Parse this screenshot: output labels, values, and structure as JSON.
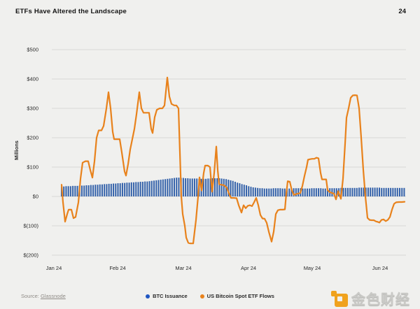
{
  "header": {
    "title": "ETFs Have Altered the Landscape",
    "page_number": "24"
  },
  "footer": {
    "source_prefix": "Source: ",
    "source_link": "Glassnode",
    "brand_name": "金色财经"
  },
  "chart_data": {
    "type": "combo-bar-line",
    "title": "ETFs Have Altered the Landscape",
    "ylabel": "Millions",
    "xlabel": "",
    "ylim": [
      -250,
      550
    ],
    "grid": true,
    "legend_position": "bottom-center",
    "y_ticks": [
      {
        "label": "$500",
        "value": 500
      },
      {
        "label": "$400",
        "value": 400
      },
      {
        "label": "$300",
        "value": 300
      },
      {
        "label": "$200",
        "value": 200
      },
      {
        "label": "$100",
        "value": 100
      },
      {
        "label": "$0",
        "value": 0
      },
      {
        "label": "$(100)",
        "value": -100
      },
      {
        "label": "$(200)",
        "value": -200
      }
    ],
    "x_ticks": [
      "Jan 24",
      "Feb 24",
      "Mar 24",
      "Apr 24",
      "May 24",
      "Jun 24"
    ],
    "series": [
      {
        "name": "BTC Issuance",
        "type": "bar",
        "color": "#3462aa",
        "legend_color": "#1f56c2",
        "unit": "USD millions per day",
        "values": [
          34,
          34,
          35,
          35,
          35,
          36,
          36,
          36,
          37,
          37,
          37,
          38,
          38,
          39,
          39,
          40,
          40,
          41,
          41,
          42,
          42,
          43,
          43,
          44,
          44,
          45,
          45,
          46,
          46,
          47,
          47,
          48,
          48,
          49,
          49,
          50,
          50,
          51,
          51,
          52,
          53,
          54,
          55,
          56,
          57,
          58,
          59,
          60,
          61,
          62,
          63,
          64,
          64,
          63,
          63,
          62,
          62,
          61,
          61,
          61,
          61,
          60,
          60,
          60,
          60,
          61,
          61,
          62,
          62,
          62,
          62,
          61,
          60,
          59,
          57,
          55,
          53,
          50,
          47,
          45,
          42,
          40,
          38,
          35,
          33,
          31,
          30,
          29,
          28,
          28,
          27,
          27,
          27,
          27,
          28,
          28,
          28,
          28,
          27,
          27,
          27,
          27,
          27,
          28,
          28,
          28,
          28,
          27,
          27,
          27,
          27,
          28,
          28,
          28,
          28,
          28,
          27,
          27,
          27,
          28,
          28,
          28,
          28,
          28,
          29,
          29,
          29,
          29,
          29,
          29,
          29,
          29,
          30,
          30,
          30,
          30,
          30,
          30,
          30,
          30,
          30,
          30,
          29,
          29,
          29,
          29,
          29,
          29,
          29,
          29,
          29,
          29,
          29
        ]
      },
      {
        "name": "US Bitcoin Spot ETF Flows",
        "type": "line",
        "color": "#e8821c",
        "unit": "USD millions per day",
        "points": [
          [
            88,
            40
          ],
          [
            90,
            -20
          ],
          [
            93,
            -86
          ],
          [
            96,
            -60
          ],
          [
            98,
            -45
          ],
          [
            102,
            -45
          ],
          [
            105,
            -74
          ],
          [
            108,
            -70
          ],
          [
            112,
            -20
          ],
          [
            115,
            60
          ],
          [
            118,
            115
          ],
          [
            122,
            120
          ],
          [
            126,
            120
          ],
          [
            129,
            90
          ],
          [
            132,
            64
          ],
          [
            135,
            120
          ],
          [
            138,
            200
          ],
          [
            141,
            225
          ],
          [
            145,
            225
          ],
          [
            148,
            240
          ],
          [
            152,
            300
          ],
          [
            155,
            355
          ],
          [
            158,
            300
          ],
          [
            161,
            220
          ],
          [
            163,
            195
          ],
          [
            167,
            195
          ],
          [
            171,
            195
          ],
          [
            174,
            150
          ],
          [
            178,
            85
          ],
          [
            180,
            71
          ],
          [
            183,
            110
          ],
          [
            186,
            160
          ],
          [
            189,
            195
          ],
          [
            192,
            230
          ],
          [
            195,
            280
          ],
          [
            199,
            355
          ],
          [
            202,
            300
          ],
          [
            205,
            285
          ],
          [
            209,
            285
          ],
          [
            213,
            285
          ],
          [
            216,
            230
          ],
          [
            218,
            216
          ],
          [
            221,
            270
          ],
          [
            224,
            295
          ],
          [
            228,
            300
          ],
          [
            232,
            300
          ],
          [
            235,
            310
          ],
          [
            239,
            405
          ],
          [
            242,
            340
          ],
          [
            245,
            315
          ],
          [
            249,
            310
          ],
          [
            252,
            310
          ],
          [
            255,
            300
          ],
          [
            257,
            150
          ],
          [
            259,
            0
          ],
          [
            261,
            -60
          ],
          [
            264,
            -100
          ],
          [
            266,
            -140
          ],
          [
            269,
            -158
          ],
          [
            272,
            -160
          ],
          [
            276,
            -160
          ],
          [
            280,
            -80
          ],
          [
            283,
            0
          ],
          [
            285,
            65
          ],
          [
            288,
            20
          ],
          [
            291,
            80
          ],
          [
            293,
            105
          ],
          [
            297,
            105
          ],
          [
            300,
            100
          ],
          [
            303,
            16
          ],
          [
            306,
            80
          ],
          [
            309,
            170
          ],
          [
            311,
            90
          ],
          [
            313,
            42
          ],
          [
            316,
            40
          ],
          [
            320,
            38
          ],
          [
            324,
            30
          ],
          [
            327,
            10
          ],
          [
            330,
            -5
          ],
          [
            334,
            -5
          ],
          [
            338,
            -6
          ],
          [
            341,
            -30
          ],
          [
            345,
            -55
          ],
          [
            348,
            -30
          ],
          [
            351,
            -40
          ],
          [
            354,
            -32
          ],
          [
            357,
            -30
          ],
          [
            360,
            -33
          ],
          [
            363,
            -20
          ],
          [
            366,
            -5
          ],
          [
            369,
            -30
          ],
          [
            372,
            -63
          ],
          [
            375,
            -75
          ],
          [
            378,
            -76
          ],
          [
            381,
            -90
          ],
          [
            384,
            -120
          ],
          [
            388,
            -154
          ],
          [
            391,
            -120
          ],
          [
            394,
            -60
          ],
          [
            397,
            -47
          ],
          [
            400,
            -45
          ],
          [
            404,
            -45
          ],
          [
            407,
            -44
          ],
          [
            409,
            10
          ],
          [
            411,
            52
          ],
          [
            414,
            50
          ],
          [
            417,
            20
          ],
          [
            420,
            5
          ],
          [
            423,
            8
          ],
          [
            426,
            10
          ],
          [
            429,
            12
          ],
          [
            432,
            36
          ],
          [
            435,
            70
          ],
          [
            438,
            100
          ],
          [
            440,
            125
          ],
          [
            443,
            127
          ],
          [
            446,
            128
          ],
          [
            449,
            128
          ],
          [
            452,
            132
          ],
          [
            455,
            130
          ],
          [
            458,
            80
          ],
          [
            460,
            58
          ],
          [
            463,
            58
          ],
          [
            466,
            58
          ],
          [
            468,
            22
          ],
          [
            471,
            15
          ],
          [
            474,
            12
          ],
          [
            477,
            10
          ],
          [
            480,
            -10
          ],
          [
            483,
            18
          ],
          [
            485,
            5
          ],
          [
            487,
            -8
          ],
          [
            490,
            60
          ],
          [
            493,
            180
          ],
          [
            495,
            268
          ],
          [
            498,
            300
          ],
          [
            501,
            336
          ],
          [
            504,
            344
          ],
          [
            507,
            345
          ],
          [
            510,
            344
          ],
          [
            513,
            300
          ],
          [
            516,
            200
          ],
          [
            519,
            90
          ],
          [
            522,
            0
          ],
          [
            525,
            -73
          ],
          [
            528,
            -80
          ],
          [
            531,
            -81
          ],
          [
            534,
            -81
          ],
          [
            537,
            -85
          ],
          [
            540,
            -87
          ],
          [
            542,
            -89
          ],
          [
            545,
            -80
          ],
          [
            548,
            -78
          ],
          [
            551,
            -84
          ],
          [
            554,
            -80
          ],
          [
            557,
            -70
          ],
          [
            560,
            -45
          ],
          [
            563,
            -25
          ],
          [
            566,
            -20
          ],
          [
            570,
            -19
          ],
          [
            574,
            -19
          ],
          [
            578,
            -18
          ]
        ]
      }
    ]
  }
}
